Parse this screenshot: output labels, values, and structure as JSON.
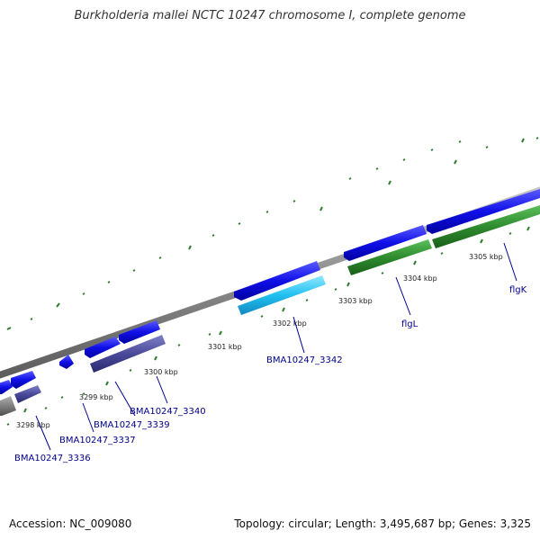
{
  "title": "Burkholderia mallei NCTC 10247 chromosome I, complete genome",
  "footer": {
    "accession": "Accession: NC_009080",
    "summary": "Topology: circular; Length: 3,495,687 bp; Genes: 3,325"
  },
  "colors": {
    "backbone": "#8a8a8a",
    "tick": "#2e7d2e",
    "gene_blue": "#1010e8",
    "gene_purple": "#4a4a9a",
    "gene_cyan": "#20c0f0",
    "gene_green": "#2e8b2e",
    "gene_gray": "#808080",
    "label": "#00008b"
  },
  "tick_labels": [
    "3298 kbp",
    "3299 kbp",
    "3300 kbp",
    "3301 kbp",
    "3302 kbp",
    "3303 kbp",
    "3304 kbp",
    "3305 kbp"
  ],
  "gene_labels": [
    "BMA10247_3336",
    "BMA10247_3337",
    "BMA10247_3339",
    "BMA10247_3340",
    "BMA10247_3342",
    "flgL",
    "flgK"
  ]
}
